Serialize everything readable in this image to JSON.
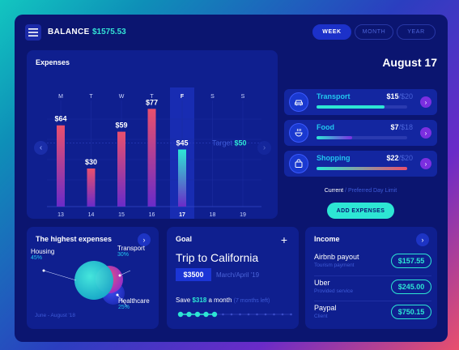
{
  "header": {
    "balance_label": "BALANCE",
    "balance_value": "$1575.53",
    "periods": [
      {
        "label": "WEEK",
        "active": true
      },
      {
        "label": "MONTH",
        "active": false
      },
      {
        "label": "YEAR",
        "active": false
      }
    ]
  },
  "expenses": {
    "title": "Expenses",
    "target_label": "Target",
    "target_value": "$50",
    "chart_data": {
      "type": "bar",
      "days": [
        "M",
        "T",
        "W",
        "T",
        "F",
        "S",
        "S"
      ],
      "dates": [
        "13",
        "14",
        "15",
        "16",
        "17",
        "18",
        "19"
      ],
      "values": [
        64,
        30,
        59,
        77,
        45,
        null,
        null
      ],
      "value_labels": [
        "$64",
        "$30",
        "$59",
        "$77",
        "$45",
        "",
        ""
      ],
      "selected_index": 4,
      "target": 50,
      "ylim": [
        0,
        90
      ],
      "colors": {
        "bar_top": "#e9506d",
        "bar_bottom": "#6a2bc8",
        "selected_top": "#2de6d4",
        "selected_bottom": "#6a2bc8"
      }
    }
  },
  "categories": {
    "date_title": "August 17",
    "items": [
      {
        "name": "Transport",
        "spent": "$15",
        "limit": "/$20",
        "fraction": 0.75,
        "icon": "car-icon",
        "color": "#2de6d4"
      },
      {
        "name": "Food",
        "spent": "$7",
        "limit": "/$18",
        "fraction": 0.39,
        "icon": "food-icon",
        "color": "#7b2fe0"
      },
      {
        "name": "Shopping",
        "spent": "$22",
        "limit": "/$20",
        "fraction": 1.0,
        "icon": "shopping-bag-icon",
        "color": "#e9506d"
      }
    ],
    "legend_current": "Current",
    "legend_sep": " / ",
    "legend_preferred": "Preferred Day Limit",
    "add_button": "ADD EXPENSES"
  },
  "highest": {
    "title": "The highest expenses",
    "items": [
      {
        "name": "Housing",
        "pct": "45%"
      },
      {
        "name": "Transport",
        "pct": "30%"
      },
      {
        "name": "Healthcare",
        "pct": "25%"
      }
    ],
    "range": "June - August '18"
  },
  "goal": {
    "title": "Goal",
    "name": "Trip to California",
    "amount": "$3500",
    "date": "March/April '19",
    "save_prefix": "Save",
    "save_amount": "$318",
    "save_suffix": "a month",
    "months_left": "(7 months left)",
    "progress_dots_filled": 5,
    "progress_dots_total": 14
  },
  "income": {
    "title": "Income",
    "items": [
      {
        "name": "Airbnb payout",
        "source": "Tourism payment",
        "amount": "$157.55"
      },
      {
        "name": "Uber",
        "source": "Provided service",
        "amount": "$245.00"
      },
      {
        "name": "Paypal",
        "source": "Client",
        "amount": "$750.15"
      }
    ]
  }
}
